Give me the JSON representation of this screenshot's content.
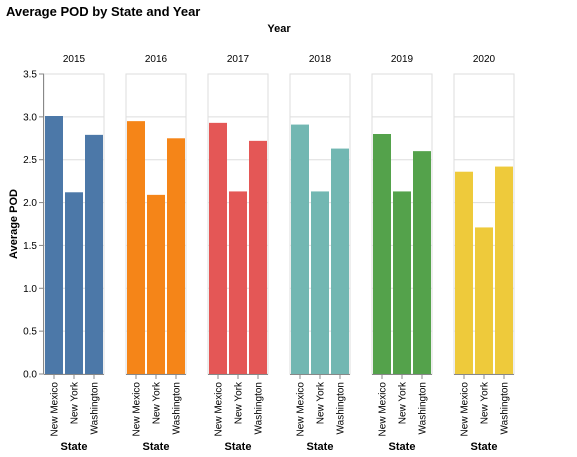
{
  "chart_data": {
    "type": "bar",
    "title": "Average POD by State and Year",
    "column_title": "Year",
    "xlabel": "State",
    "ylabel": "Average POD",
    "ylim": [
      0,
      3.5
    ],
    "yticks": [
      "0.0",
      "0.5",
      "1.0",
      "1.5",
      "2.0",
      "2.5",
      "3.0",
      "3.5"
    ],
    "categories": [
      "New Mexico",
      "New York",
      "Washington"
    ],
    "grid": true,
    "facets": [
      {
        "year": "2015",
        "color": "#4c78a8",
        "values": [
          3.01,
          2.12,
          2.79
        ]
      },
      {
        "year": "2016",
        "color": "#f58518",
        "values": [
          2.95,
          2.09,
          2.75
        ]
      },
      {
        "year": "2017",
        "color": "#e45756",
        "values": [
          2.93,
          2.13,
          2.72
        ]
      },
      {
        "year": "2018",
        "color": "#72b7b2",
        "values": [
          2.91,
          2.13,
          2.63
        ]
      },
      {
        "year": "2019",
        "color": "#54a24b",
        "values": [
          2.8,
          2.13,
          2.6
        ]
      },
      {
        "year": "2020",
        "color": "#eeca3b",
        "values": [
          2.36,
          1.71,
          2.42
        ]
      }
    ]
  }
}
